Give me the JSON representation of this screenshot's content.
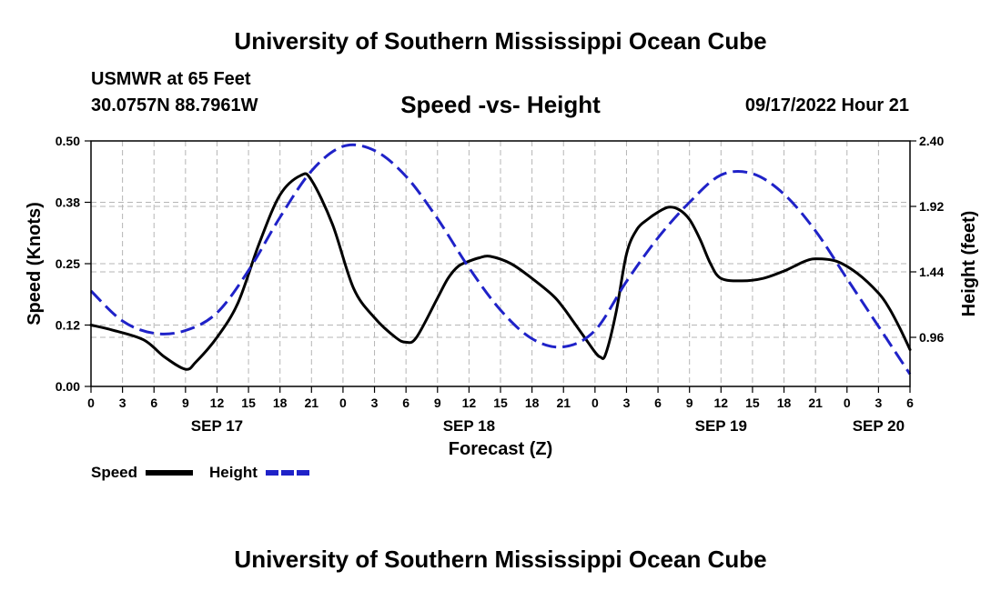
{
  "header": {
    "title": "University of Southern Mississippi Ocean Cube",
    "station": "USMWR at 65 Feet",
    "coordinates": "30.0757N  88.7961W",
    "subtitle": "Speed -vs- Height",
    "datetime": "09/17/2022 Hour 21"
  },
  "footer": {
    "title": "University of Southern Mississippi Ocean Cube"
  },
  "chart_data": {
    "type": "line",
    "title": "Speed -vs- Height",
    "xlabel": "Forecast (Z)",
    "ylabel_left": "Speed (Knots)",
    "ylabel_right": "Height (feet)",
    "x_unit": "hours since 09/17 00Z",
    "xlim": [
      0,
      78
    ],
    "ylim_left": [
      0,
      0.5
    ],
    "ylim_right": [
      0.6,
      2.4
    ],
    "x_ticks": [
      0,
      3,
      6,
      9,
      12,
      15,
      18,
      21,
      24,
      27,
      30,
      33,
      36,
      39,
      42,
      45,
      48,
      51,
      54,
      57,
      60,
      63,
      66,
      69,
      72,
      75,
      78
    ],
    "x_tick_labels": [
      "0",
      "3",
      "6",
      "9",
      "12",
      "15",
      "18",
      "21",
      "0",
      "3",
      "6",
      "9",
      "12",
      "15",
      "18",
      "21",
      "0",
      "3",
      "6",
      "9",
      "12",
      "15",
      "18",
      "21",
      "0",
      "3",
      "6"
    ],
    "y_left_ticks": [
      0,
      0.125,
      0.25,
      0.375,
      0.5
    ],
    "y_left_tick_labels": [
      "0.00",
      "0.12",
      "0.25",
      "0.38",
      "0.50"
    ],
    "y_right_ticks": [
      0.96,
      1.44,
      1.92,
      2.4
    ],
    "y_right_tick_labels": [
      "0.96",
      "1.44",
      "1.92",
      "2.40"
    ],
    "date_labels": [
      {
        "x": 12,
        "label": "SEP 17"
      },
      {
        "x": 36,
        "label": "SEP 18"
      },
      {
        "x": 60,
        "label": "SEP 19"
      },
      {
        "x": 75,
        "label": "SEP 20"
      }
    ],
    "grid": true,
    "legend_position": "bottom-left",
    "series": [
      {
        "name": "Speed",
        "axis": "left",
        "color": "#000000",
        "dash": "solid",
        "x": [
          0,
          2,
          5,
          7,
          9,
          10,
          12,
          14,
          16,
          18,
          20,
          21,
          23,
          25,
          27,
          29,
          30,
          31,
          33,
          34,
          35,
          36,
          37,
          38,
          40,
          42,
          44,
          45,
          46,
          47,
          48,
          48.5,
          49,
          50,
          51,
          52,
          53,
          54,
          55,
          56,
          57,
          58,
          59,
          60,
          62,
          64,
          66,
          67,
          68,
          69,
          71,
          73,
          75,
          76,
          77,
          78
        ],
        "y": [
          0.125,
          0.115,
          0.095,
          0.06,
          0.035,
          0.05,
          0.1,
          0.17,
          0.29,
          0.39,
          0.43,
          0.42,
          0.33,
          0.2,
          0.14,
          0.1,
          0.09,
          0.1,
          0.18,
          0.22,
          0.245,
          0.255,
          0.262,
          0.265,
          0.25,
          0.22,
          0.185,
          0.16,
          0.13,
          0.1,
          0.07,
          0.06,
          0.065,
          0.15,
          0.27,
          0.32,
          0.34,
          0.355,
          0.365,
          0.36,
          0.34,
          0.3,
          0.25,
          0.22,
          0.215,
          0.22,
          0.235,
          0.245,
          0.255,
          0.26,
          0.255,
          0.23,
          0.19,
          0.16,
          0.12,
          0.075
        ]
      },
      {
        "name": "Height",
        "axis": "right",
        "color": "#1f22c8",
        "dash": "dashed",
        "x": [
          0,
          3,
          6,
          9,
          12,
          15,
          18,
          21,
          24,
          27,
          30,
          33,
          36,
          39,
          42,
          45,
          48,
          51,
          54,
          57,
          60,
          63,
          66,
          69,
          72,
          75,
          78
        ],
        "y": [
          1.3,
          1.08,
          0.99,
          1.01,
          1.14,
          1.45,
          1.84,
          2.18,
          2.36,
          2.33,
          2.14,
          1.83,
          1.47,
          1.16,
          0.95,
          0.89,
          1.01,
          1.37,
          1.69,
          1.95,
          2.15,
          2.16,
          2.01,
          1.74,
          1.39,
          1.04,
          0.69
        ]
      }
    ]
  }
}
